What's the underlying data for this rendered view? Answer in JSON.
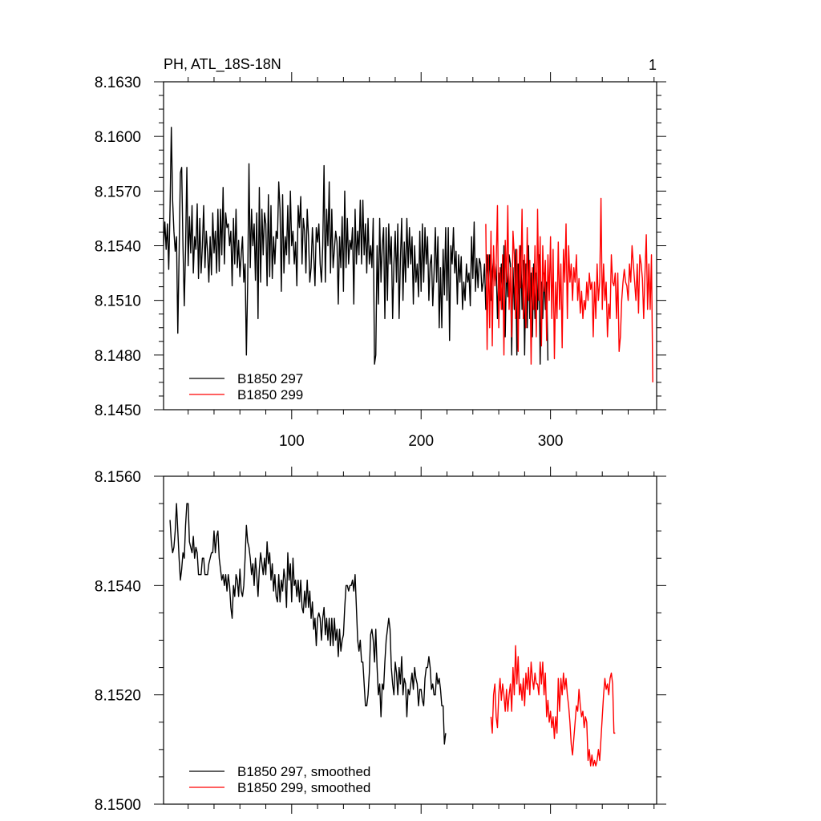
{
  "chart_data": [
    {
      "type": "line",
      "title": "PH, ATL_18S-18N",
      "panel_label": "1",
      "xlabel": "",
      "ylabel": "",
      "xlim": [
        1,
        382
      ],
      "ylim": [
        8.145,
        8.163
      ],
      "yticks": [
        "8.1450",
        "8.1480",
        "8.1510",
        "8.1540",
        "8.1570",
        "8.1600",
        "8.1630"
      ],
      "ytick_values": [
        8.145,
        8.148,
        8.151,
        8.154,
        8.157,
        8.16,
        8.163
      ],
      "xticks": [
        "100",
        "200",
        "300"
      ],
      "xtick_values": [
        100,
        200,
        300
      ],
      "series": [
        {
          "name": "B1850 297",
          "color": "#000000",
          "x_start": 1,
          "values": [
            8.154,
            8.1553,
            8.1538,
            8.1552,
            8.1527,
            8.156,
            8.1605,
            8.1565,
            8.1548,
            8.1537,
            8.1545,
            8.1492,
            8.1535,
            8.158,
            8.1583,
            8.154,
            8.1507,
            8.1538,
            8.1583,
            8.1529,
            8.1556,
            8.1536,
            8.1562,
            8.1525,
            8.1545,
            8.1538,
            8.1563,
            8.1522,
            8.1555,
            8.1525,
            8.154,
            8.1562,
            8.1528,
            8.1548,
            8.1537,
            8.152,
            8.1545,
            8.1524,
            8.1558,
            8.1536,
            8.1548,
            8.1525,
            8.156,
            8.1526,
            8.156,
            8.1535,
            8.1572,
            8.153,
            8.1558,
            8.155,
            8.1552,
            8.154,
            8.1548,
            8.1518,
            8.1555,
            8.153,
            8.156,
            8.1528,
            8.1543,
            8.1523,
            8.1535,
            8.1545,
            8.152,
            8.153,
            8.148,
            8.152,
            8.1585,
            8.1528,
            8.156,
            8.154,
            8.1552,
            8.1521,
            8.1558,
            8.15,
            8.1572,
            8.152,
            8.156,
            8.1535,
            8.1558,
            8.1552,
            8.1518,
            8.1568,
            8.1523,
            8.1562,
            8.1522,
            8.1545,
            8.153,
            8.1548,
            8.1544,
            8.1575,
            8.156,
            8.1515,
            8.1568,
            8.1525,
            8.1545,
            8.1535,
            8.1562,
            8.153,
            8.157,
            8.154,
            8.1548,
            8.153,
            8.1542,
            8.1518,
            8.1562,
            8.155,
            8.1567,
            8.153,
            8.1555,
            8.1548,
            8.1525,
            8.156,
            8.1545,
            8.152,
            8.1528,
            8.155,
            8.1535,
            8.1518,
            8.155,
            8.1542,
            8.1552,
            8.153,
            8.152,
            8.154,
            8.1584,
            8.152,
            8.156,
            8.154,
            8.1575,
            8.1525,
            8.156,
            8.1528,
            8.1538,
            8.1548,
            8.1542,
            8.1508,
            8.1545,
            8.1528,
            8.1556,
            8.1515,
            8.157,
            8.1528,
            8.1555,
            8.153,
            8.1543,
            8.1538,
            8.155,
            8.1508,
            8.156,
            8.153,
            8.1548,
            8.1535,
            8.1565,
            8.153,
            8.1565,
            8.1535,
            8.1552,
            8.1525,
            8.1555,
            8.153,
            8.154,
            8.1528,
            8.1555,
            8.1475,
            8.148,
            8.154,
            8.1508,
            8.1555,
            8.152,
            8.154,
            8.155,
            8.15,
            8.155,
            8.151,
            8.1552,
            8.153,
            8.1545,
            8.15,
            8.153,
            8.1548,
            8.152,
            8.1552,
            8.15,
            8.1532,
            8.1555,
            8.151,
            8.1542,
            8.152,
            8.1555,
            8.1528,
            8.155,
            8.153,
            8.1545,
            8.1508,
            8.154,
            8.152,
            8.153,
            8.1512,
            8.1548,
            8.1515,
            8.1552,
            8.152,
            8.155,
            8.153,
            8.1545,
            8.151,
            8.153,
            8.1535,
            8.1507,
            8.1525,
            8.155,
            8.152,
            8.1545,
            8.1495,
            8.1528,
            8.1495,
            8.1538,
            8.1513,
            8.155,
            8.151,
            8.155,
            8.1488,
            8.154,
            8.153,
            8.155,
            8.1525,
            8.1537,
            8.1508,
            8.1535,
            8.152,
            8.1534,
            8.1505,
            8.152,
            8.151,
            8.153,
            8.152,
            8.1525,
            8.1507,
            8.1545,
            8.1522,
            8.1553,
            8.1515,
            8.1533,
            8.1517,
            8.1533,
            8.153,
            8.1515,
            8.152,
            8.153,
            8.1505,
            8.1535,
            8.152,
            8.1535,
            8.151,
            8.1525,
            8.1533,
            8.152,
            8.153,
            8.15,
            8.1525,
            8.151,
            8.153,
            8.1505,
            8.154,
            8.149,
            8.153,
            8.1512,
            8.1535,
            8.153,
            8.148,
            8.1528,
            8.1505,
            8.1538,
            8.148,
            8.153,
            8.15,
            8.154,
            8.1505,
            8.1532,
            8.148,
            8.153,
            8.1495,
            8.154,
            8.15,
            8.1525,
            8.149,
            8.153,
            8.15,
            8.1525,
            8.1505,
            8.1535,
            8.1475,
            8.152,
            8.15,
            8.1525,
            8.1505,
            8.152,
            8.1477
          ]
        },
        {
          "name": "B1850 299",
          "color": "#ff0000",
          "x_start": 250,
          "values": [
            8.1552,
            8.1483,
            8.1535,
            8.1495,
            8.1548,
            8.1485,
            8.154,
            8.1518,
            8.153,
            8.1562,
            8.1495,
            8.1528,
            8.1505,
            8.1535,
            8.148,
            8.1543,
            8.152,
            8.1562,
            8.1505,
            8.1528,
            8.149,
            8.1548,
            8.1535,
            8.15,
            8.1538,
            8.1482,
            8.154,
            8.1517,
            8.156,
            8.15,
            8.1535,
            8.1495,
            8.155,
            8.151,
            8.1532,
            8.1475,
            8.1528,
            8.1505,
            8.154,
            8.149,
            8.156,
            8.151,
            8.1545,
            8.1485,
            8.154,
            8.1515,
            8.1532,
            8.1488,
            8.1535,
            8.151,
            8.1545,
            8.15,
            8.1538,
            8.1478,
            8.152,
            8.15,
            8.1542,
            8.1505,
            8.153,
            8.1484,
            8.1538,
            8.152,
            8.1552,
            8.15,
            8.154,
            8.152,
            8.153,
            8.151,
            8.1528,
            8.152,
            8.1535,
            8.151,
            8.1522,
            8.1503,
            8.1515,
            8.15,
            8.151,
            8.1505,
            8.152,
            8.151,
            8.1525,
            8.1516,
            8.152,
            8.149,
            8.152,
            8.15,
            8.153,
            8.151,
            8.152,
            8.1566,
            8.1505,
            8.153,
            8.151,
            8.152,
            8.149,
            8.1508,
            8.15,
            8.1535,
            8.152,
            8.1518,
            8.1525,
            8.15,
            8.1525,
            8.1482,
            8.149,
            8.151,
            8.152,
            8.1527,
            8.152,
            8.1518,
            8.151,
            8.153,
            8.152,
            8.154,
            8.153,
            8.152,
            8.151,
            8.153,
            8.1503,
            8.1535,
            8.153,
            8.1522,
            8.15,
            8.1525,
            8.1546,
            8.1505,
            8.153,
            8.1505,
            8.1535,
            8.1465
          ]
        }
      ]
    },
    {
      "type": "line",
      "title": "",
      "xlabel": "",
      "ylabel": "",
      "xlim": [
        1,
        382
      ],
      "ylim": [
        8.15,
        8.156
      ],
      "yticks": [
        "8.1500",
        "8.1520",
        "8.1540",
        "8.1560"
      ],
      "ytick_values": [
        8.15,
        8.152,
        8.154,
        8.156
      ],
      "xtick_values": [
        100,
        200,
        300
      ],
      "series": [
        {
          "name": "B1850 297, smoothed",
          "color": "#000000",
          "x_start": 6,
          "values": [
            8.1552,
            8.1548,
            8.1546,
            8.1547,
            8.155,
            8.1555,
            8.155,
            8.1545,
            8.1541,
            8.1543,
            8.1546,
            8.1545,
            8.1551,
            8.1555,
            8.1555,
            8.1548,
            8.1547,
            8.1546,
            8.1549,
            8.1545,
            8.1547,
            8.1546,
            8.1542,
            8.1542,
            8.1542,
            8.1545,
            8.1545,
            8.1542,
            8.1542,
            8.1542,
            8.1544,
            8.1545,
            8.1546,
            8.1546,
            8.155,
            8.1546,
            8.1549,
            8.155,
            8.1545,
            8.1543,
            8.1541,
            8.1542,
            8.154,
            8.1542,
            8.1539,
            8.1542,
            8.154,
            8.1536,
            8.1534,
            8.154,
            8.1538,
            8.1542,
            8.1541,
            8.1538,
            8.1543,
            8.1539,
            8.1538,
            8.154,
            8.1545,
            8.1551,
            8.1548,
            8.1547,
            8.1545,
            8.1542,
            8.1544,
            8.154,
            8.1545,
            8.1542,
            8.1538,
            8.1543,
            8.1546,
            8.1544,
            8.1542,
            8.1545,
            8.1542,
            8.1548,
            8.1544,
            8.1546,
            8.1541,
            8.1544,
            8.1539,
            8.1542,
            8.1538,
            8.1537,
            8.1542,
            8.1537,
            8.1541,
            8.1539,
            8.1543,
            8.1541,
            8.1536,
            8.1546,
            8.1541,
            8.1544,
            8.1537,
            8.1545,
            8.154,
            8.1541,
            8.1538,
            8.1541,
            8.1537,
            8.1541,
            8.1536,
            8.1535,
            8.1539,
            8.1536,
            8.1541,
            8.1536,
            8.1539,
            8.1534,
            8.1537,
            8.1532,
            8.1534,
            8.1529,
            8.1534,
            8.1535,
            8.1534,
            8.153,
            8.1534,
            8.1536,
            8.1531,
            8.1534,
            8.153,
            8.1534,
            8.1529,
            8.1534,
            8.1529,
            8.1534,
            8.153,
            8.1532,
            8.1527,
            8.1532,
            8.1528,
            8.153,
            8.1531,
            8.1536,
            8.154,
            8.154,
            8.1539,
            8.154,
            8.154,
            8.1541,
            8.1539,
            8.1542,
            8.1536,
            8.153,
            8.1528,
            8.153,
            8.1526,
            8.1526,
            8.1522,
            8.1518,
            8.1518,
            8.152,
            8.1524,
            8.1531,
            8.1532,
            8.153,
            8.1526,
            8.1532,
            8.1525,
            8.152,
            8.1522,
            8.1516,
            8.1522,
            8.1521,
            8.1526,
            8.153,
            8.1532,
            8.1534,
            8.1532,
            8.1525,
            8.1522,
            8.152,
            8.1526,
            8.1524,
            8.152,
            8.1525,
            8.1522,
            8.1527,
            8.152,
            8.1523,
            8.1522,
            8.1516,
            8.1521,
            8.152,
            8.1522,
            8.1524,
            8.1521,
            8.1525,
            8.1523,
            8.1522,
            8.1518,
            8.1521,
            8.1521,
            8.1519,
            8.1518,
            8.1523,
            8.1525,
            8.1525,
            8.1527,
            8.1525,
            8.1521,
            8.1522,
            8.152,
            8.152,
            8.1524,
            8.1522,
            8.1523,
            8.1521,
            8.1518,
            8.1518,
            8.1511,
            8.1513
          ]
        },
        {
          "name": "B1850 299, smoothed",
          "color": "#ff0000",
          "x_start": 254,
          "values": [
            8.1516,
            8.1513,
            8.152,
            8.1522,
            8.1516,
            8.1514,
            8.152,
            8.1523,
            8.1519,
            8.1522,
            8.152,
            8.1517,
            8.1521,
            8.1517,
            8.152,
            8.1522,
            8.1517,
            8.1525,
            8.152,
            8.1529,
            8.1522,
            8.1527,
            8.152,
            8.1522,
            8.1519,
            8.1523,
            8.1518,
            8.1524,
            8.1521,
            8.1525,
            8.152,
            8.1526,
            8.1523,
            8.1521,
            8.1524,
            8.1522,
            8.1522,
            8.152,
            8.1526,
            8.1522,
            8.1526,
            8.152,
            8.1524,
            8.1516,
            8.1519,
            8.1515,
            8.1517,
            8.1514,
            8.1516,
            8.1512,
            8.1516,
            8.1513,
            8.1523,
            8.1517,
            8.1523,
            8.152,
            8.1524,
            8.1521,
            8.1523,
            8.152,
            8.1518,
            8.1515,
            8.1511,
            8.1509,
            8.1512,
            8.1515,
            8.1518,
            8.1517,
            8.1521,
            8.1518,
            8.1516,
            8.1517,
            8.1514,
            8.1516,
            8.1515,
            8.1508,
            8.151,
            8.1507,
            8.1509,
            8.1507,
            8.1508,
            8.1507,
            8.1508,
            8.151,
            8.1508,
            8.1512,
            8.1516,
            8.152,
            8.1523,
            8.1521,
            8.1522,
            8.152,
            8.1523,
            8.1524,
            8.1522,
            8.1513,
            8.1513
          ]
        }
      ]
    }
  ]
}
